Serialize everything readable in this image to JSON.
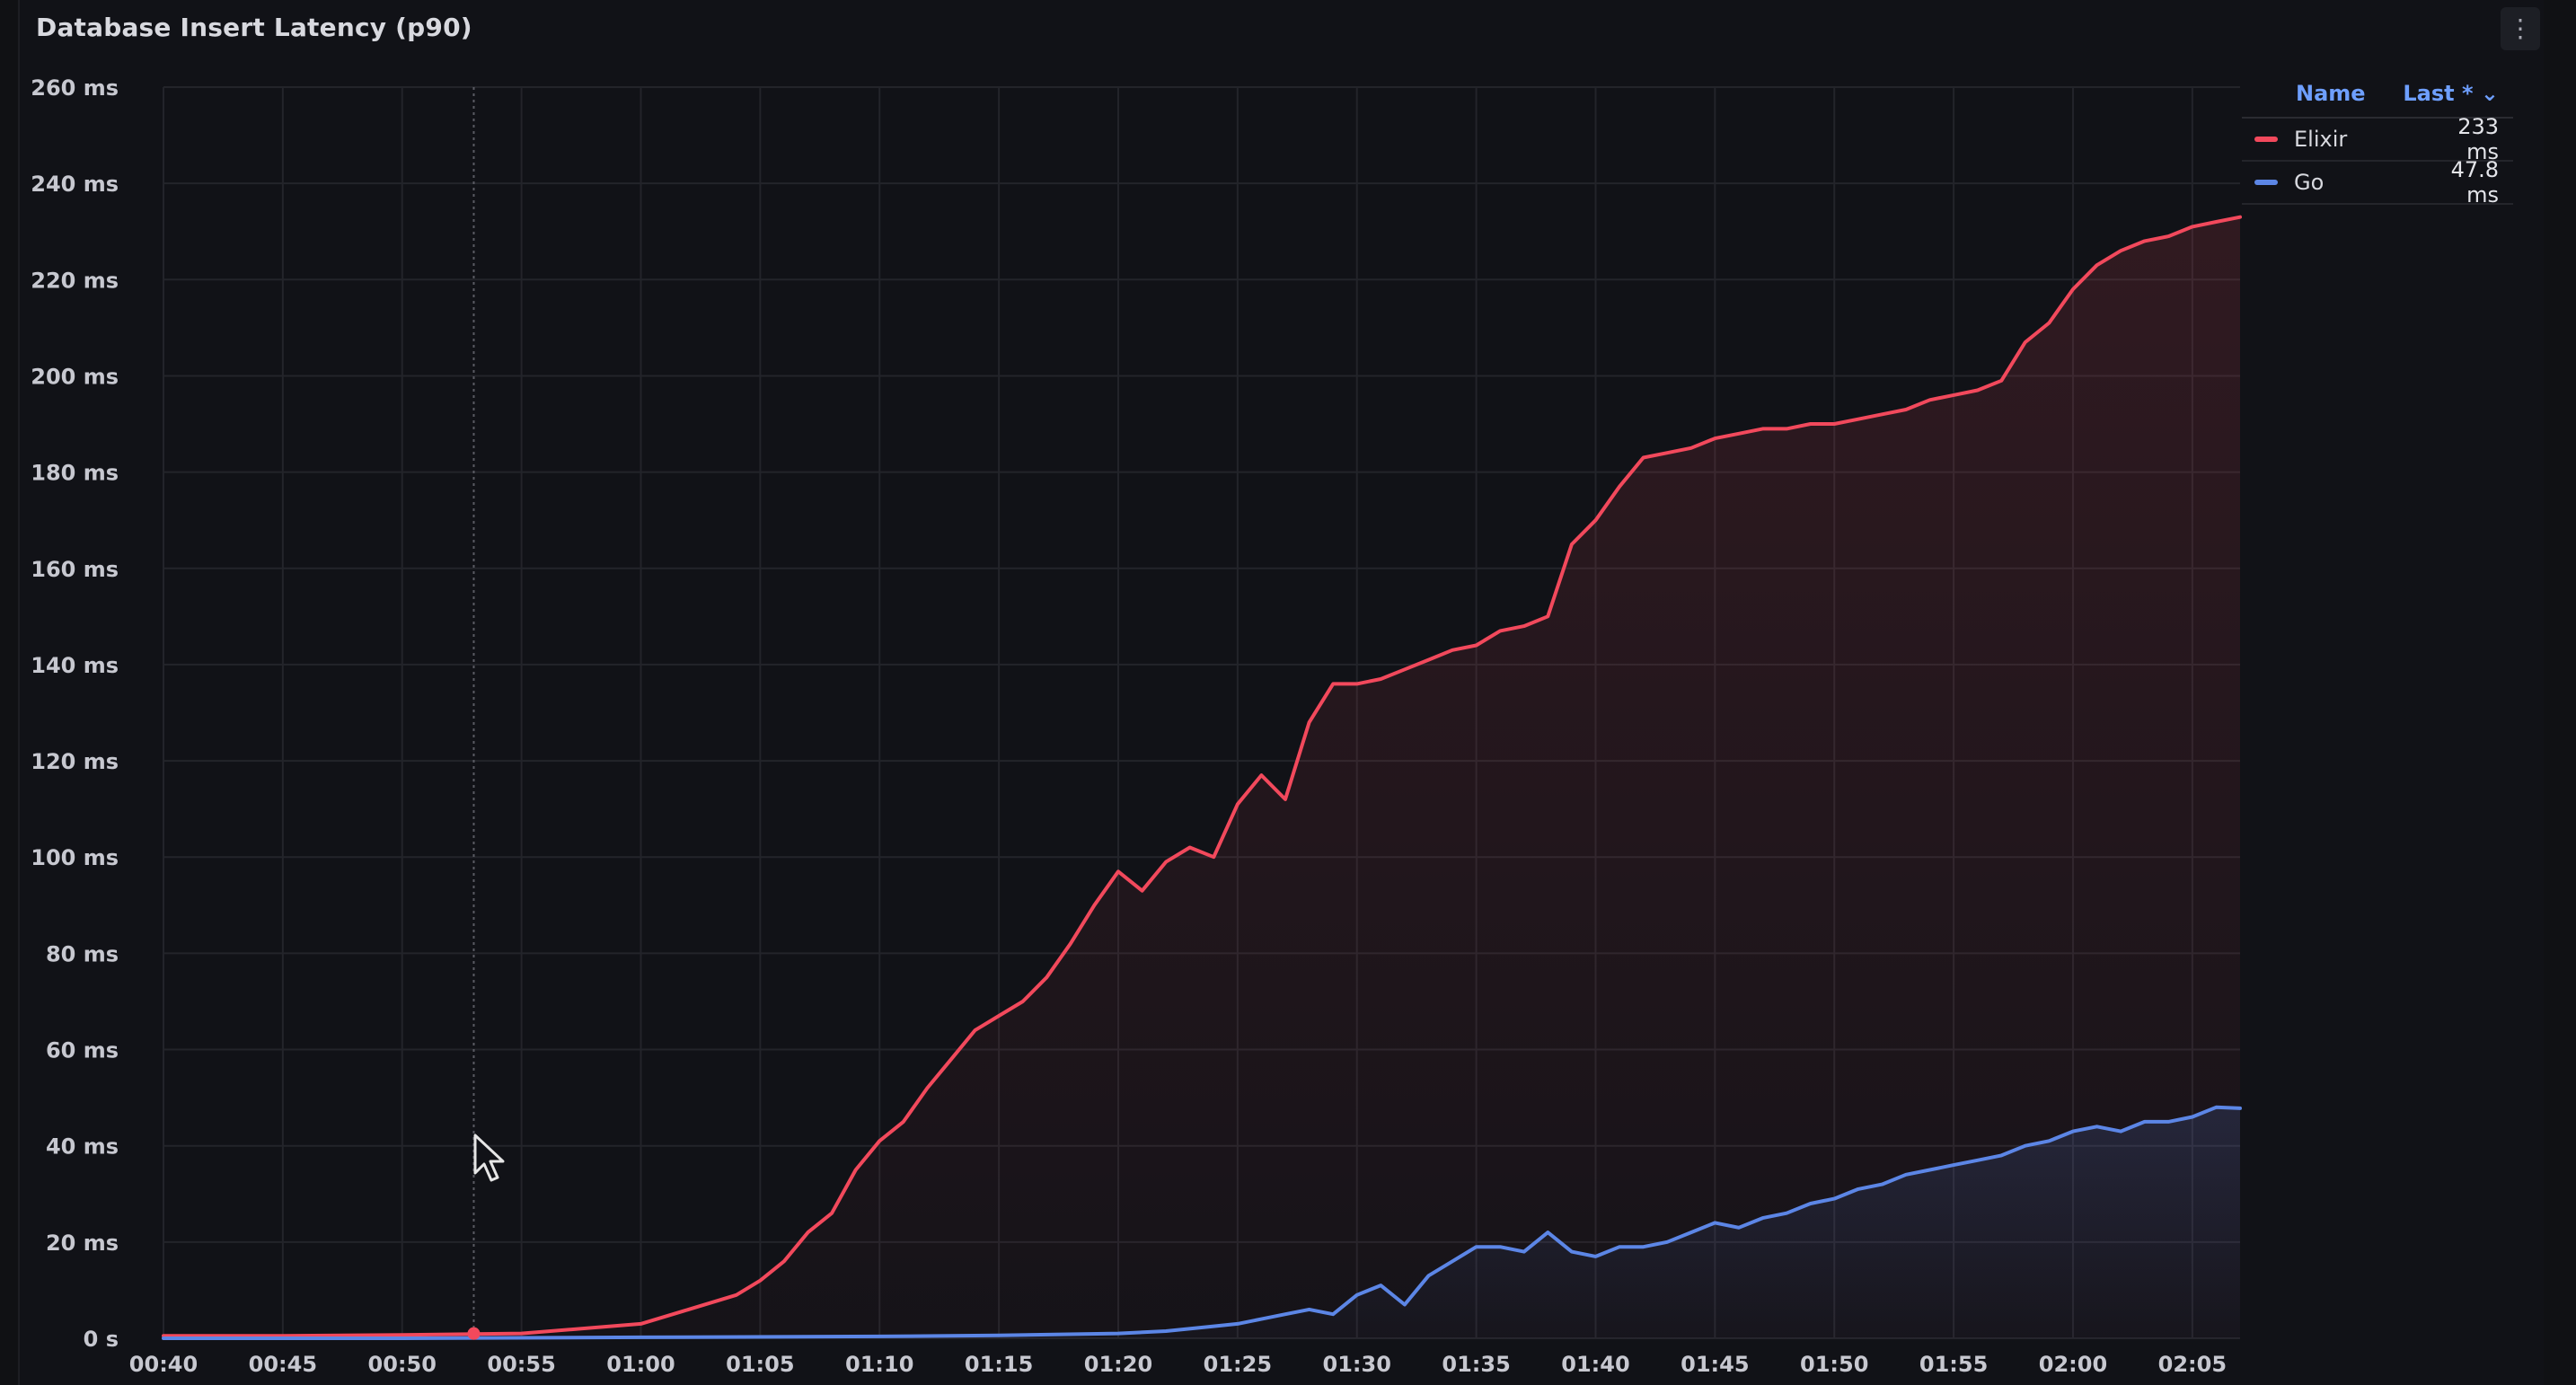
{
  "panel": {
    "title": "Database Insert Latency (p90)",
    "menu_icon": "kebab-menu-icon"
  },
  "legend": {
    "name_header": "Name",
    "last_header": "Last * ⌄",
    "items": [
      {
        "name": "Elixir",
        "value": "233 ms",
        "color": "#f2495c"
      },
      {
        "name": "Go",
        "value": "47.8 ms",
        "color": "#5c86e6"
      }
    ]
  },
  "chart_data": {
    "type": "line",
    "title": "Database Insert Latency (p90)",
    "xlabel": "",
    "ylabel": "",
    "ylim": [
      0,
      260
    ],
    "xlim": [
      "00:40",
      "02:07"
    ],
    "grid": true,
    "legend_position": "top-right",
    "y_ticks": [
      "0 s",
      "20 ms",
      "40 ms",
      "60 ms",
      "80 ms",
      "100 ms",
      "120 ms",
      "140 ms",
      "160 ms",
      "180 ms",
      "200 ms",
      "220 ms",
      "240 ms",
      "260 ms"
    ],
    "x_ticks": [
      "00:40",
      "00:45",
      "00:50",
      "00:55",
      "01:00",
      "01:05",
      "01:10",
      "01:15",
      "01:20",
      "01:25",
      "01:30",
      "01:35",
      "01:40",
      "01:45",
      "01:50",
      "01:55",
      "02:00",
      "02:05"
    ],
    "series": [
      {
        "name": "Elixir",
        "color": "#f2495c",
        "x": [
          "00:40",
          "00:45",
          "00:50",
          "00:55",
          "01:00",
          "01:02",
          "01:04",
          "01:05",
          "01:06",
          "01:07",
          "01:08",
          "01:09",
          "01:10",
          "01:11",
          "01:12",
          "01:13",
          "01:14",
          "01:15",
          "01:16",
          "01:17",
          "01:18",
          "01:19",
          "01:20",
          "01:21",
          "01:22",
          "01:23",
          "01:24",
          "01:25",
          "01:26",
          "01:27",
          "01:28",
          "01:29",
          "01:30",
          "01:31",
          "01:32",
          "01:33",
          "01:34",
          "01:35",
          "01:36",
          "01:37",
          "01:38",
          "01:39",
          "01:40",
          "01:41",
          "01:42",
          "01:43",
          "01:44",
          "01:45",
          "01:46",
          "01:47",
          "01:48",
          "01:49",
          "01:50",
          "01:51",
          "01:52",
          "01:53",
          "01:54",
          "01:55",
          "01:56",
          "01:57",
          "01:58",
          "01:59",
          "02:00",
          "02:01",
          "02:02",
          "02:03",
          "02:04",
          "02:05",
          "02:06",
          "02:07"
        ],
        "values": [
          0.5,
          0.5,
          0.7,
          1,
          3,
          6,
          9,
          12,
          16,
          22,
          26,
          35,
          41,
          45,
          52,
          58,
          64,
          67,
          70,
          75,
          82,
          90,
          97,
          93,
          99,
          102,
          100,
          111,
          117,
          112,
          128,
          136,
          136,
          137,
          139,
          141,
          143,
          144,
          147,
          148,
          150,
          165,
          170,
          177,
          183,
          184,
          185,
          187,
          188,
          189,
          189,
          190,
          190,
          191,
          192,
          193,
          195,
          196,
          197,
          199,
          207,
          211,
          218,
          223,
          226,
          228,
          229,
          231,
          232,
          233
        ]
      },
      {
        "name": "Go",
        "color": "#5c86e6",
        "x": [
          "00:40",
          "00:50",
          "01:00",
          "01:10",
          "01:15",
          "01:20",
          "01:22",
          "01:24",
          "01:25",
          "01:26",
          "01:27",
          "01:28",
          "01:29",
          "01:30",
          "01:31",
          "01:32",
          "01:33",
          "01:34",
          "01:35",
          "01:36",
          "01:37",
          "01:38",
          "01:39",
          "01:40",
          "01:41",
          "01:42",
          "01:43",
          "01:44",
          "01:45",
          "01:46",
          "01:47",
          "01:48",
          "01:49",
          "01:50",
          "01:51",
          "01:52",
          "01:53",
          "01:54",
          "01:55",
          "01:56",
          "01:57",
          "01:58",
          "01:59",
          "02:00",
          "02:01",
          "02:02",
          "02:03",
          "02:04",
          "02:05",
          "02:06",
          "02:07"
        ],
        "values": [
          0,
          0,
          0.2,
          0.4,
          0.6,
          1,
          1.5,
          2.5,
          3,
          4,
          5,
          6,
          5,
          9,
          11,
          7,
          13,
          16,
          19,
          19,
          18,
          22,
          18,
          17,
          19,
          19,
          20,
          22,
          24,
          23,
          25,
          26,
          28,
          29,
          31,
          32,
          34,
          35,
          36,
          37,
          38,
          40,
          41,
          43,
          44,
          43,
          45,
          45,
          46,
          48,
          47.8
        ]
      }
    ]
  }
}
